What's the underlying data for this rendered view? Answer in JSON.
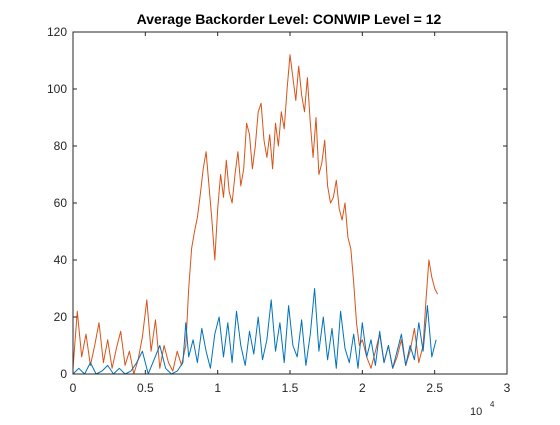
{
  "chart_data": {
    "type": "line",
    "title": "Average Backorder Level: CONWIP Level = 12",
    "xlabel": "",
    "ylabel": "",
    "x_exponent_label": "10",
    "x_exponent_power": "4",
    "xlim": [
      0,
      30000
    ],
    "ylim": [
      0,
      120
    ],
    "x_ticks": [
      0,
      5000,
      10000,
      15000,
      20000,
      25000,
      30000
    ],
    "x_tick_labels": [
      "0",
      "0.5",
      "1",
      "1.5",
      "2",
      "2.5",
      "3"
    ],
    "y_ticks": [
      0,
      20,
      40,
      60,
      80,
      100,
      120
    ],
    "y_tick_labels": [
      "0",
      "20",
      "40",
      "60",
      "80",
      "100",
      "120"
    ],
    "grid": false,
    "legend": "none",
    "series": [
      {
        "color": "#D95319",
        "x": [
          0,
          300,
          600,
          900,
          1200,
          1500,
          1800,
          2100,
          2400,
          2700,
          3000,
          3300,
          3600,
          3900,
          4200,
          4500,
          4800,
          5100,
          5400,
          5700,
          6000,
          6300,
          6600,
          6900,
          7200,
          7500,
          7800,
          8000,
          8200,
          8400,
          8600,
          8800,
          9000,
          9200,
          9400,
          9600,
          9800,
          10000,
          10200,
          10400,
          10600,
          10800,
          11000,
          11200,
          11400,
          11600,
          11800,
          12000,
          12200,
          12400,
          12600,
          12800,
          13000,
          13200,
          13400,
          13600,
          13800,
          14000,
          14200,
          14400,
          14600,
          14800,
          15000,
          15200,
          15400,
          15600,
          15800,
          16000,
          16200,
          16400,
          16600,
          16800,
          17000,
          17200,
          17400,
          17600,
          17800,
          18000,
          18200,
          18400,
          18600,
          18800,
          19000,
          19200,
          19400,
          19600,
          19800,
          20000,
          20300,
          20600,
          20900,
          21200,
          21500,
          21800,
          22100,
          22400,
          22700,
          23000,
          23300,
          23600,
          23900,
          24200,
          24400,
          24600,
          24800,
          25000,
          25200
        ],
        "y": [
          2,
          22,
          6,
          14,
          3,
          10,
          18,
          4,
          12,
          2,
          9,
          15,
          3,
          8,
          0,
          5,
          13,
          26,
          8,
          19,
          2,
          10,
          4,
          1,
          8,
          3,
          10,
          30,
          44,
          50,
          55,
          63,
          72,
          78,
          66,
          54,
          40,
          58,
          70,
          62,
          75,
          64,
          60,
          70,
          78,
          66,
          72,
          88,
          84,
          72,
          80,
          92,
          95,
          82,
          76,
          84,
          72,
          88,
          80,
          92,
          86,
          100,
          112,
          104,
          96,
          108,
          98,
          92,
          104,
          88,
          76,
          90,
          70,
          74,
          82,
          66,
          60,
          62,
          68,
          58,
          54,
          60,
          48,
          44,
          32,
          18,
          10,
          12,
          6,
          2,
          8,
          14,
          4,
          10,
          2,
          6,
          12,
          3,
          8,
          16,
          4,
          10,
          26,
          40,
          34,
          30,
          28
        ]
      },
      {
        "color": "#0072BD",
        "x": [
          0,
          400,
          800,
          1200,
          1600,
          2000,
          2400,
          2800,
          3200,
          3600,
          4000,
          4400,
          4800,
          5200,
          5600,
          6000,
          6400,
          6800,
          7200,
          7600,
          7800,
          8000,
          8300,
          8600,
          8900,
          9200,
          9500,
          9800,
          10100,
          10400,
          10700,
          11000,
          11300,
          11600,
          11900,
          12200,
          12500,
          12800,
          13100,
          13400,
          13700,
          14000,
          14300,
          14600,
          14900,
          15200,
          15500,
          15800,
          16100,
          16400,
          16700,
          17000,
          17300,
          17600,
          17900,
          18200,
          18500,
          18800,
          19100,
          19400,
          19700,
          20000,
          20300,
          20600,
          20900,
          21200,
          21500,
          21800,
          22100,
          22400,
          22700,
          23000,
          23300,
          23600,
          23900,
          24200,
          24500,
          24800,
          25100
        ],
        "y": [
          0,
          2,
          0,
          4,
          0,
          1,
          3,
          0,
          2,
          0,
          1,
          4,
          8,
          0,
          5,
          10,
          2,
          0,
          1,
          4,
          18,
          6,
          12,
          4,
          16,
          8,
          2,
          14,
          20,
          6,
          18,
          4,
          22,
          10,
          3,
          15,
          7,
          20,
          5,
          12,
          26,
          8,
          18,
          4,
          24,
          10,
          6,
          19,
          3,
          14,
          30,
          8,
          20,
          5,
          16,
          2,
          22,
          9,
          4,
          14,
          2,
          18,
          6,
          12,
          3,
          15,
          4,
          10,
          2,
          8,
          14,
          3,
          10,
          5,
          18,
          8,
          24,
          6,
          12
        ]
      }
    ]
  }
}
